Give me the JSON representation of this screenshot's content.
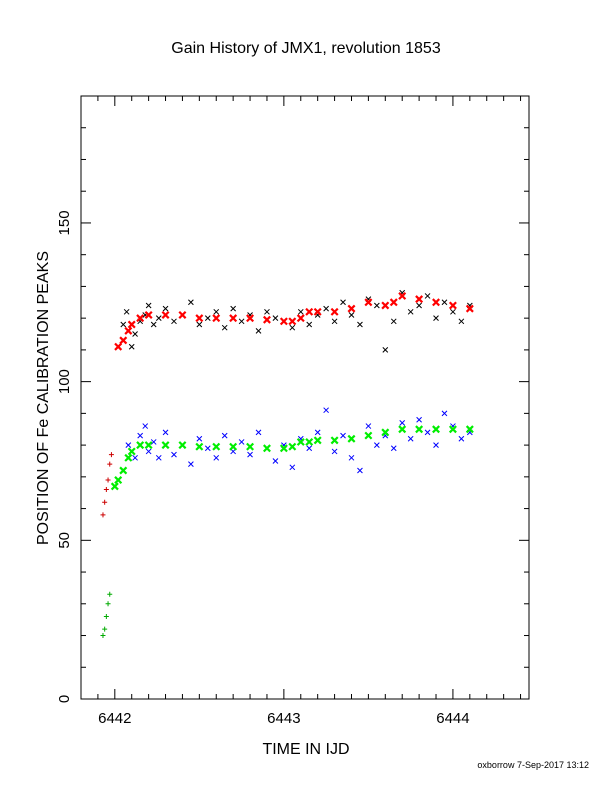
{
  "footer": "oxborrow  7-Sep-2017 13:12",
  "chart_data": {
    "type": "scatter",
    "title": "Gain History of JMX1, revolution 1853",
    "xlabel": "TIME IN IJD",
    "ylabel": "POSITION OF Fe CALIBRATION PEAKS",
    "xlim": [
      6441.8,
      6444.45
    ],
    "ylim": [
      0,
      190
    ],
    "x_ticks": [
      6442,
      6443,
      6444
    ],
    "x_tick_labels": [
      "6442",
      "6443",
      "6444"
    ],
    "y_ticks": [
      0,
      50,
      100,
      150
    ],
    "y_tick_labels": [
      "0",
      "50",
      "100",
      "150"
    ],
    "grid": false,
    "legend": "none",
    "colors": {
      "upper_raw": "#000000",
      "upper_smooth": "#ff0000",
      "lower_raw": "#0000ff",
      "lower_smooth": "#00ee00",
      "early_upper": "#cc0000",
      "early_lower": "#00aa00"
    },
    "series": [
      {
        "key": "upper_raw",
        "marker": "x",
        "color": "#000000",
        "x": [
          6442.02,
          6442.05,
          6442.07,
          6442.1,
          6442.12,
          6442.15,
          6442.18,
          6442.2,
          6442.23,
          6442.26,
          6442.3,
          6442.35,
          6442.4,
          6442.45,
          6442.5,
          6442.55,
          6442.6,
          6442.65,
          6442.7,
          6442.75,
          6442.8,
          6442.85,
          6442.9,
          6442.95,
          6443.0,
          6443.05,
          6443.1,
          6443.15,
          6443.2,
          6443.25,
          6443.3,
          6443.35,
          6443.4,
          6443.45,
          6443.5,
          6443.55,
          6443.6,
          6443.65,
          6443.7,
          6443.75,
          6443.8,
          6443.85,
          6443.9,
          6443.95,
          6444.0,
          6444.05,
          6444.1
        ],
        "y": [
          111,
          118,
          122,
          111,
          115,
          119,
          121,
          124,
          118,
          120,
          123,
          119,
          121,
          125,
          118,
          120,
          122,
          117,
          123,
          119,
          121,
          116,
          122,
          120,
          119,
          117,
          122,
          118,
          121,
          123,
          119,
          125,
          121,
          118,
          126,
          124,
          110,
          119,
          128,
          122,
          124,
          127,
          120,
          125,
          122,
          119,
          124
        ]
      },
      {
        "key": "upper_smooth",
        "marker": "x",
        "color": "#ff0000",
        "x": [
          6442.02,
          6442.05,
          6442.08,
          6442.1,
          6442.15,
          6442.2,
          6442.3,
          6442.4,
          6442.5,
          6442.6,
          6442.7,
          6442.8,
          6442.9,
          6443.0,
          6443.05,
          6443.1,
          6443.15,
          6443.2,
          6443.3,
          6443.4,
          6443.5,
          6443.6,
          6443.65,
          6443.7,
          6443.8,
          6443.9,
          6444.0,
          6444.1
        ],
        "y": [
          111,
          113,
          116,
          118,
          120,
          121,
          121,
          121,
          120,
          120,
          120,
          120,
          119.5,
          119,
          119,
          120,
          122,
          122,
          122,
          123,
          125,
          124,
          125,
          127,
          126,
          125,
          124,
          123
        ]
      },
      {
        "key": "lower_raw",
        "marker": "x",
        "color": "#0000ff",
        "x": [
          6442.08,
          6442.12,
          6442.15,
          6442.18,
          6442.2,
          6442.23,
          6442.26,
          6442.3,
          6442.35,
          6442.4,
          6442.45,
          6442.5,
          6442.55,
          6442.6,
          6442.65,
          6442.7,
          6442.75,
          6442.8,
          6442.85,
          6442.9,
          6442.95,
          6443.0,
          6443.05,
          6443.1,
          6443.15,
          6443.2,
          6443.25,
          6443.3,
          6443.35,
          6443.4,
          6443.45,
          6443.5,
          6443.55,
          6443.6,
          6443.65,
          6443.7,
          6443.75,
          6443.8,
          6443.85,
          6443.9,
          6443.95,
          6444.0,
          6444.05,
          6444.1
        ],
        "y": [
          80,
          76,
          83,
          86,
          78,
          81,
          76,
          84,
          77,
          80,
          74,
          82,
          79,
          76,
          83,
          78,
          81,
          77,
          84,
          79,
          75,
          80,
          73,
          82,
          79,
          84,
          91,
          78,
          83,
          76,
          72,
          86,
          80,
          83,
          79,
          87,
          82,
          88,
          84,
          80,
          90,
          86,
          82,
          84
        ]
      },
      {
        "key": "lower_smooth",
        "marker": "x",
        "color": "#00ee00",
        "x": [
          6442.0,
          6442.02,
          6442.05,
          6442.08,
          6442.1,
          6442.15,
          6442.2,
          6442.3,
          6442.4,
          6442.5,
          6442.6,
          6442.7,
          6442.8,
          6442.9,
          6443.0,
          6443.05,
          6443.1,
          6443.15,
          6443.2,
          6443.3,
          6443.4,
          6443.5,
          6443.6,
          6443.7,
          6443.8,
          6443.9,
          6444.0,
          6444.1
        ],
        "y": [
          67,
          69,
          72,
          76,
          78,
          80,
          80,
          80,
          80,
          79.5,
          79.5,
          79.5,
          79.5,
          79,
          79,
          79.5,
          81,
          81,
          81.5,
          81.5,
          82,
          83,
          84,
          85,
          85,
          85,
          85,
          85
        ]
      },
      {
        "key": "early_upper",
        "marker": "+",
        "color": "#cc0000",
        "x": [
          6441.93,
          6441.94,
          6441.95,
          6441.96,
          6441.97,
          6441.98
        ],
        "y": [
          58,
          62,
          66,
          69,
          74,
          77
        ]
      },
      {
        "key": "early_lower",
        "marker": "+",
        "color": "#00aa00",
        "x": [
          6441.93,
          6441.94,
          6441.95,
          6441.96,
          6441.97
        ],
        "y": [
          20,
          22,
          26,
          30,
          33
        ]
      }
    ]
  }
}
